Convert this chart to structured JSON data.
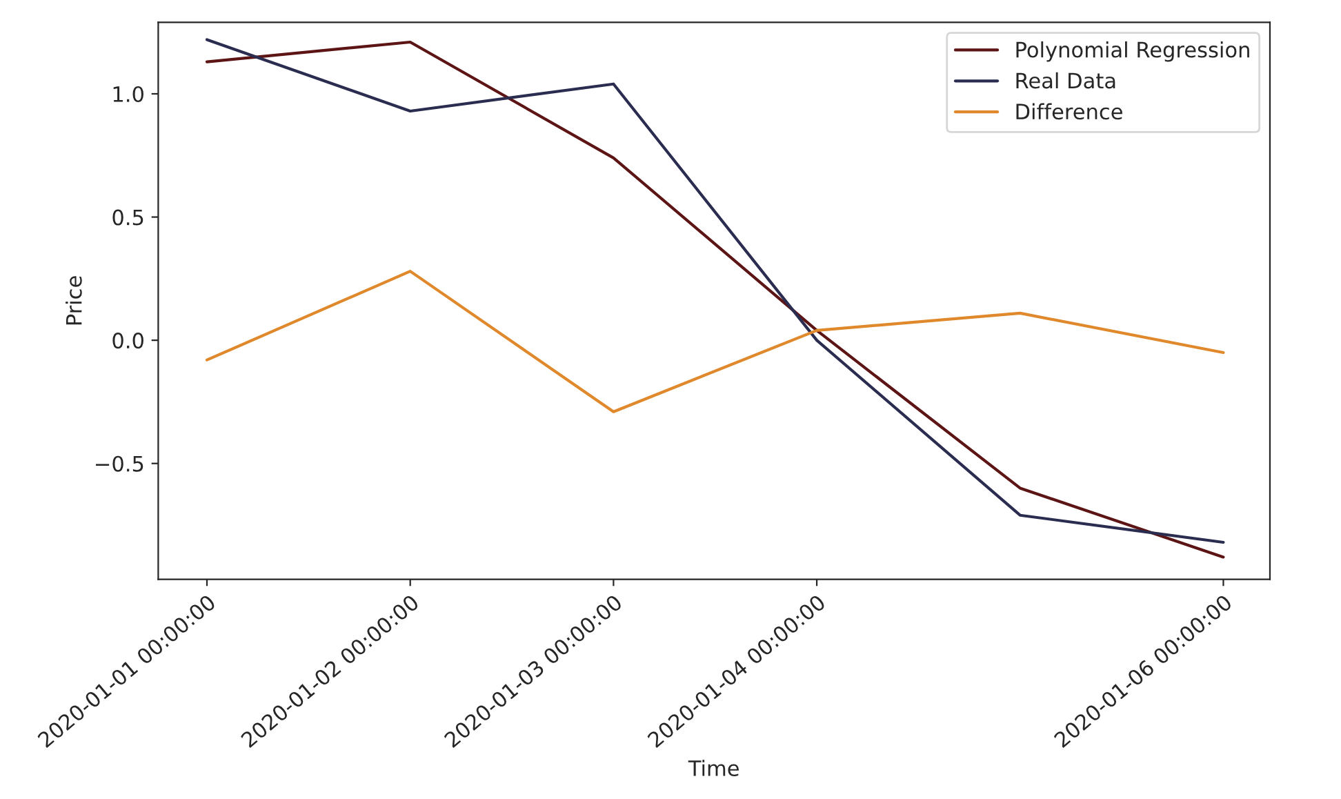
{
  "chart_data": {
    "type": "line",
    "xlabel": "Time",
    "ylabel": "Price",
    "x": [
      "2020-01-01",
      "2020-01-02",
      "2020-01-03",
      "2020-01-04",
      "2020-01-05",
      "2020-01-06"
    ],
    "series": [
      {
        "name": "Polynomial Regression",
        "color": "#5c1414",
        "values": [
          1.13,
          1.21,
          0.74,
          0.04,
          -0.6,
          -0.88
        ]
      },
      {
        "name": "Real Data",
        "color": "#2b2d50",
        "values": [
          1.22,
          0.93,
          1.04,
          0.0,
          -0.71,
          -0.82
        ]
      },
      {
        "name": "Difference",
        "color": "#e0892c",
        "values": [
          -0.08,
          0.28,
          -0.29,
          0.04,
          0.11,
          -0.05
        ]
      }
    ],
    "xlim": [
      "2019-12-31T18:15",
      "2020-01-06T05:30"
    ],
    "xticks": [
      {
        "value": "2020-01-01",
        "label": "2020-01-01 00:00:00"
      },
      {
        "value": "2020-01-02",
        "label": "2020-01-02 00:00:00"
      },
      {
        "value": "2020-01-03",
        "label": "2020-01-03 00:00:00"
      },
      {
        "value": "2020-01-04",
        "label": "2020-01-04 00:00:00"
      },
      {
        "value": "2020-01-06",
        "label": "2020-01-06 00:00:00"
      }
    ],
    "ylim": [
      -0.97,
      1.29
    ],
    "yticks": [
      {
        "value": -0.5,
        "label": "−0.5"
      },
      {
        "value": 0.0,
        "label": "0.0"
      },
      {
        "value": 0.5,
        "label": "0.5"
      },
      {
        "value": 1.0,
        "label": "1.0"
      }
    ],
    "legend": "top right",
    "grid": false,
    "marker": "none",
    "line_style": "solid"
  }
}
